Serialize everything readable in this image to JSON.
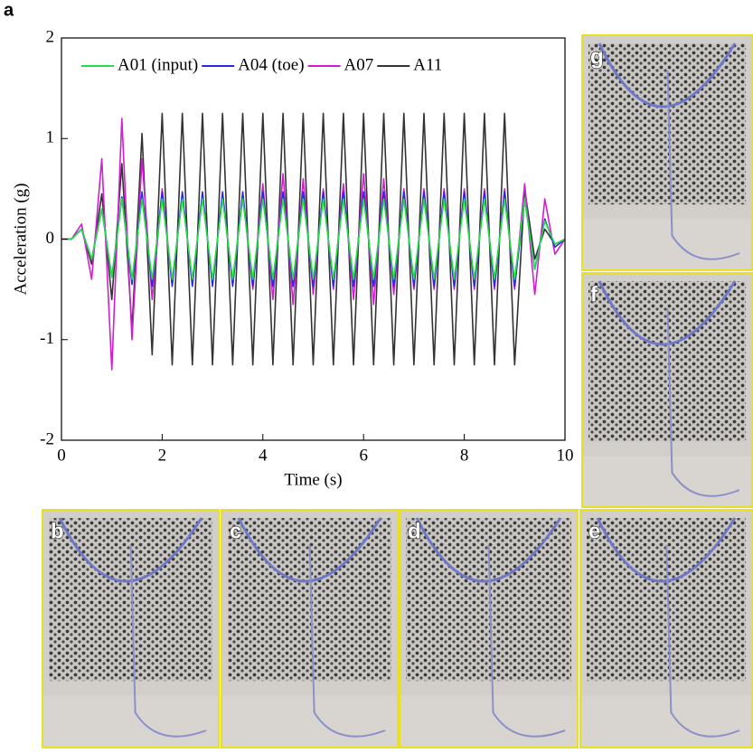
{
  "figure_label": "a",
  "chart_data": {
    "type": "line",
    "xlabel": "Time (s)",
    "ylabel": "Acceleration (g)",
    "xlim": [
      0,
      10
    ],
    "ylim": [
      -2,
      2
    ],
    "xticks": [
      0,
      2,
      4,
      6,
      8,
      10
    ],
    "yticks": [
      -2,
      -1,
      0,
      1,
      2
    ],
    "legend": "top",
    "x": [
      0,
      0.2,
      0.4,
      0.6,
      0.8,
      1,
      1.2,
      1.4,
      1.6,
      1.8,
      2,
      2.2,
      2.4,
      2.6,
      2.8,
      3,
      3.2,
      3.4,
      3.6,
      3.8,
      4,
      4.2,
      4.4,
      4.6,
      4.8,
      5,
      5.2,
      5.4,
      5.6,
      5.8,
      6,
      6.2,
      6.4,
      6.6,
      6.8,
      7,
      7.2,
      7.4,
      7.6,
      7.8,
      8,
      8.2,
      8.4,
      8.6,
      8.8,
      9,
      9.2,
      9.4,
      9.6,
      9.8,
      10
    ],
    "series": [
      {
        "name": "A01 (input)",
        "color": "#22dd44",
        "values": [
          0,
          0,
          0.1,
          -0.2,
          0.3,
          -0.38,
          0.4,
          -0.4,
          0.4,
          -0.4,
          0.4,
          -0.4,
          0.4,
          -0.4,
          0.4,
          -0.4,
          0.4,
          -0.4,
          0.4,
          -0.4,
          0.4,
          -0.4,
          0.4,
          -0.4,
          0.4,
          -0.4,
          0.4,
          -0.4,
          0.4,
          -0.4,
          0.4,
          -0.4,
          0.4,
          -0.4,
          0.4,
          -0.4,
          0.4,
          -0.4,
          0.4,
          -0.4,
          0.4,
          -0.4,
          0.4,
          -0.4,
          0.4,
          -0.4,
          0.4,
          -0.3,
          0.18,
          -0.05,
          0
        ]
      },
      {
        "name": "A04 (toe)",
        "color": "#2a2ae0",
        "values": [
          0,
          0,
          0.1,
          -0.2,
          0.3,
          -0.38,
          0.42,
          -0.45,
          0.47,
          -0.47,
          0.47,
          -0.47,
          0.47,
          -0.47,
          0.47,
          -0.47,
          0.47,
          -0.47,
          0.47,
          -0.47,
          0.47,
          -0.47,
          0.47,
          -0.47,
          0.47,
          -0.47,
          0.47,
          -0.47,
          0.47,
          -0.47,
          0.47,
          -0.47,
          0.47,
          -0.47,
          0.47,
          -0.47,
          0.47,
          -0.47,
          0.47,
          -0.47,
          0.47,
          -0.47,
          0.47,
          -0.47,
          0.47,
          -0.47,
          0.4,
          -0.3,
          0.2,
          -0.08,
          0
        ]
      },
      {
        "name": "A07",
        "color": "#d01ed0",
        "values": [
          0,
          0,
          0.15,
          -0.4,
          0.8,
          -1.3,
          1.2,
          -1.0,
          0.8,
          -0.6,
          0.5,
          -0.45,
          0.45,
          -0.45,
          0.45,
          -0.45,
          0.45,
          -0.45,
          0.45,
          -0.5,
          0.55,
          -0.6,
          0.65,
          -0.65,
          0.6,
          -0.55,
          0.5,
          -0.5,
          0.55,
          -0.6,
          0.65,
          -0.65,
          0.6,
          -0.55,
          0.5,
          -0.5,
          0.5,
          -0.5,
          0.5,
          -0.5,
          0.5,
          -0.5,
          0.5,
          -0.5,
          0.5,
          -0.5,
          0.55,
          -0.55,
          0.4,
          -0.15,
          0
        ]
      },
      {
        "name": "A11",
        "color": "#333333",
        "values": [
          0,
          0,
          0.1,
          -0.25,
          0.45,
          -0.6,
          0.75,
          -0.9,
          1.05,
          -1.15,
          1.25,
          -1.25,
          1.25,
          -1.25,
          1.25,
          -1.25,
          1.25,
          -1.25,
          1.25,
          -1.25,
          1.25,
          -1.25,
          1.25,
          -1.25,
          1.25,
          -1.25,
          1.25,
          -1.25,
          1.25,
          -1.25,
          1.25,
          -1.25,
          1.25,
          -1.25,
          1.25,
          -1.25,
          1.25,
          -1.25,
          1.25,
          -1.25,
          1.25,
          -1.25,
          1.25,
          -1.25,
          1.25,
          -1.25,
          0.5,
          -0.2,
          0.1,
          -0.05,
          0
        ]
      }
    ]
  },
  "photos": [
    {
      "label": "g"
    },
    {
      "label": "f"
    },
    {
      "label": "b"
    },
    {
      "label": "c"
    },
    {
      "label": "d"
    },
    {
      "label": "e"
    }
  ]
}
